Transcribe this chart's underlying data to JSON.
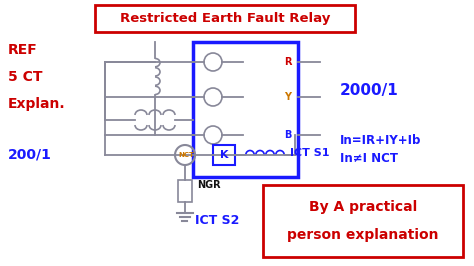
{
  "title": "Restricted Earth Fault Relay",
  "title_color": "#cc0000",
  "bg_color": "#ffffff",
  "text_red": "#cc0000",
  "text_blue": "#1a1aff",
  "text_orange": "#cc7700",
  "text_black": "#111111",
  "wire_color": "#888899",
  "left_labels": [
    "REF",
    "5 CT",
    "Explan."
  ],
  "ratio_left": "200/1",
  "ratio_right": "2000/1",
  "label_nct": "NCT",
  "label_k": "K",
  "label_ict_s1": "ICT S1",
  "label_ict_s2": "ICT S2",
  "label_ngr": "NGR",
  "label_phases": [
    "R",
    "Y",
    "B"
  ],
  "phase_colors": [
    "#cc0000",
    "#cc7700",
    "#1a1aff"
  ],
  "formula1": "In=IR+IY+Ib",
  "formula2": "In≠I NCT",
  "box_label1": "By A practical",
  "box_label2": "person explanation",
  "figsize": [
    4.74,
    2.66
  ],
  "dpi": 100
}
